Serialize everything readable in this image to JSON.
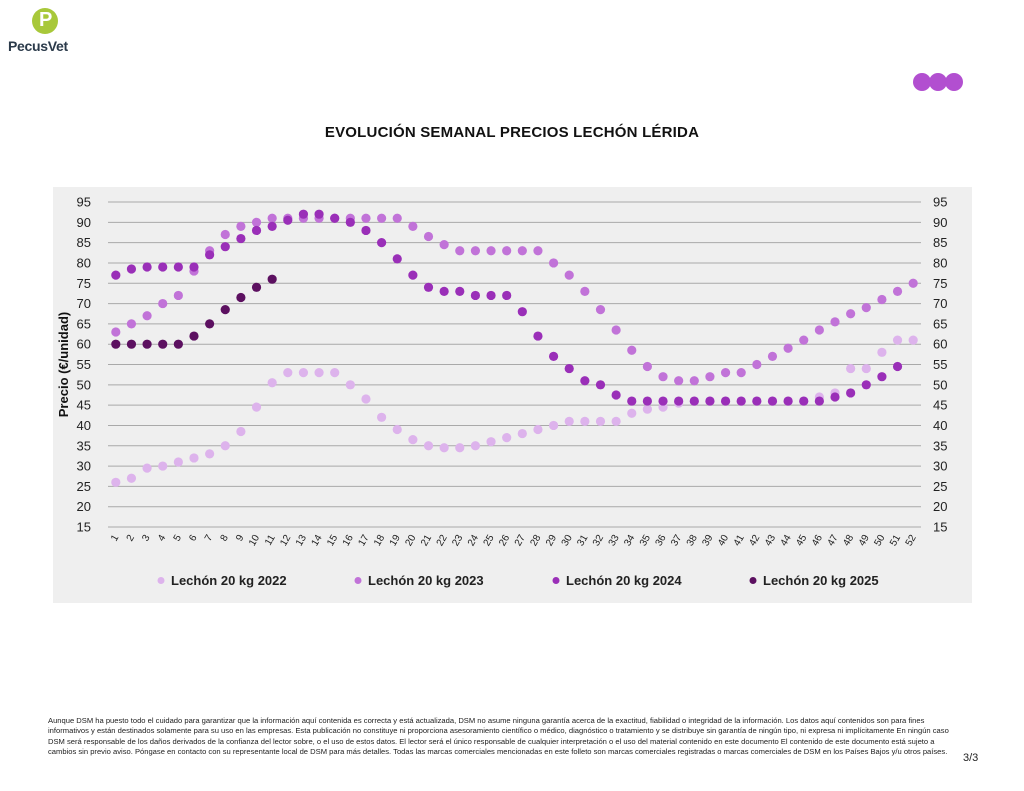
{
  "brand": {
    "logo_letter": "P",
    "logo_text": "PecusVet"
  },
  "page": {
    "page_number": "3/3"
  },
  "disclaimer": "Aunque DSM ha puesto todo el cuidado para garantizar que la información aquí contenida es correcta y está actualizada, DSM no asume ninguna garantía acerca de la exactitud, fiabilidad o integridad de la información. Los datos aquí contenidos son para fines informativos y están destinados solamente para su uso en las empresas. Esta publicación no constituye ni proporciona asesoramiento científico o médico, diagnóstico o tratamiento y se distribuye sin garantía de ningún tipo, ni expresa ni implícitamente En ningún caso DSM será responsable de los daños derivados de la confianza del lector sobre, o el uso de estos datos. El lector será el único responsable de cualquier interpretación o el uso del material contenido en este documento El contenido de este documento está sujeto a cambios sin previo aviso. Póngase en contacto con su representante local de DSM para más detalles. Todas las marcas comerciales mencionadas en este folleto son marcas comerciales registradas o marcas comerciales de DSM en los Países Bajos y/u otros países.",
  "chart_data": {
    "type": "scatter",
    "title": "EVOLUCIÓN SEMANAL PRECIOS LECHÓN LÉRIDA",
    "ylabel": "Precio (€/unidad)",
    "xlabel": "",
    "ylim": [
      15,
      95
    ],
    "yticks": [
      15,
      20,
      25,
      30,
      35,
      40,
      45,
      50,
      55,
      60,
      65,
      70,
      75,
      80,
      85,
      90,
      95
    ],
    "grid": true,
    "legend_position": "bottom",
    "categories": [
      "1",
      "2",
      "3",
      "4",
      "5",
      "6",
      "7",
      "8",
      "9",
      "10",
      "11",
      "12",
      "13",
      "14",
      "15",
      "16",
      "17",
      "18",
      "19",
      "20",
      "21",
      "22",
      "23",
      "24",
      "25",
      "26",
      "27",
      "28",
      "29",
      "30",
      "31",
      "32",
      "33",
      "34",
      "35",
      "36",
      "37",
      "38",
      "39",
      "40",
      "41",
      "42",
      "43",
      "44",
      "45",
      "46",
      "47",
      "48",
      "49",
      "50",
      "51",
      "52"
    ],
    "series": [
      {
        "name": "Lechón 20 kg 2022",
        "color": "#ddb3ec",
        "values": [
          26,
          27,
          29.5,
          30,
          31,
          32,
          33,
          35,
          38.5,
          44.5,
          50.5,
          53,
          53,
          53,
          53,
          50,
          46.5,
          42,
          39,
          36.5,
          35,
          34.5,
          34.5,
          35,
          36,
          37,
          38,
          39,
          40,
          41,
          41,
          41,
          41,
          43,
          44,
          44.5,
          45.5,
          46,
          46,
          46,
          46,
          46,
          46,
          46,
          46,
          47,
          48,
          54,
          54,
          58,
          61,
          61
        ]
      },
      {
        "name": "Lechón 20 kg 2023",
        "color": "#c173d8",
        "values": [
          63,
          65,
          67,
          70,
          72,
          78,
          83,
          87,
          89,
          90,
          91,
          91,
          91,
          91,
          91,
          91,
          91,
          91,
          91,
          89,
          86.5,
          84.5,
          83,
          83,
          83,
          83,
          83,
          83,
          80,
          77,
          73,
          68.5,
          63.5,
          58.5,
          54.5,
          52,
          51,
          51,
          52,
          53,
          53,
          55,
          57,
          59,
          61,
          63.5,
          65.5,
          67.5,
          69,
          71,
          73,
          75
        ]
      },
      {
        "name": "Lechón 20 kg 2024",
        "color": "#9a2fb8",
        "values": [
          77,
          78.5,
          79,
          79,
          79,
          79,
          82,
          84,
          86,
          88,
          89,
          90.5,
          92,
          92,
          91,
          90,
          88,
          85,
          81,
          77,
          74,
          73,
          73,
          72,
          72,
          72,
          68,
          62,
          57,
          54,
          51,
          50,
          47.5,
          46,
          46,
          46,
          46,
          46,
          46,
          46,
          46,
          46,
          46,
          46,
          46,
          46,
          47,
          48,
          50,
          52,
          54.5,
          null
        ]
      },
      {
        "name": "Lechón 20 kg 2025",
        "color": "#5c1060",
        "values": [
          60,
          60,
          60,
          60,
          60,
          62,
          65,
          68.5,
          71.5,
          74,
          76,
          null,
          null,
          null,
          null,
          null,
          null,
          null,
          null,
          null,
          null,
          null,
          null,
          null,
          null,
          null,
          null,
          null,
          null,
          null,
          null,
          null,
          null,
          null,
          null,
          null,
          null,
          null,
          null,
          null,
          null,
          null,
          null,
          null,
          null,
          null,
          null,
          null,
          null,
          null,
          null,
          null
        ]
      }
    ]
  }
}
